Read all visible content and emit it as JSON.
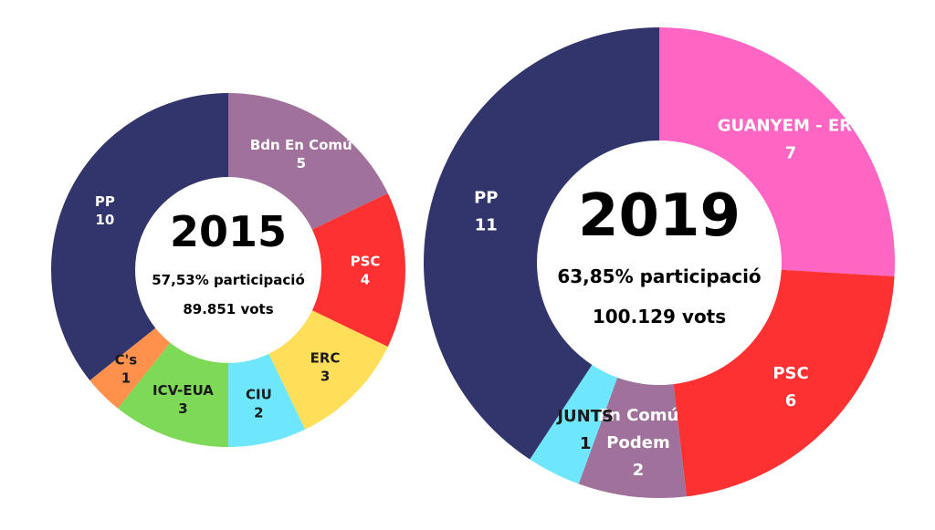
{
  "chart_data": [
    {
      "type": "pie",
      "title": "2015",
      "subtitle": "57,53% participació",
      "votes": "89.851 vots",
      "slices": [
        {
          "name": "Bdn En Comú",
          "value": 5,
          "color": "#a0719a",
          "label_color": "#ffffff"
        },
        {
          "name": "PSC",
          "value": 4,
          "color": "#fd3131",
          "label_color": "#ffffff"
        },
        {
          "name": "ERC",
          "value": 3,
          "color": "#ffde59",
          "label_color": "#1a1a1a"
        },
        {
          "name": "CIU",
          "value": 2,
          "color": "#6ee7fc",
          "label_color": "#1a1a1a"
        },
        {
          "name": "ICV-EUA",
          "value": 3,
          "color": "#7ed957",
          "label_color": "#1a1a1a"
        },
        {
          "name": "C's",
          "value": 1,
          "color": "#ff914d",
          "label_color": "#1a1a1a"
        },
        {
          "name": "PP",
          "value": 10,
          "color": "#31356c",
          "label_color": "#ffffff"
        }
      ]
    },
    {
      "type": "pie",
      "title": "2019",
      "subtitle": "63,85% participació",
      "votes": "100.129 vots",
      "slices": [
        {
          "name": "GUANYEM - ERC",
          "value": 7,
          "color": "#ff66c4",
          "label_color": "#ffffff"
        },
        {
          "name": "PSC",
          "value": 6,
          "color": "#fd3131",
          "label_color": "#ffffff"
        },
        {
          "name": "En Comú Podem",
          "value": 2,
          "color": "#a0719a",
          "label_color": "#ffffff"
        },
        {
          "name": "JUNTS",
          "value": 1,
          "color": "#6ee7fc",
          "label_color": "#1a1a1a"
        },
        {
          "name": "PP",
          "value": 11,
          "color": "#31356c",
          "label_color": "#ffffff"
        }
      ]
    }
  ]
}
